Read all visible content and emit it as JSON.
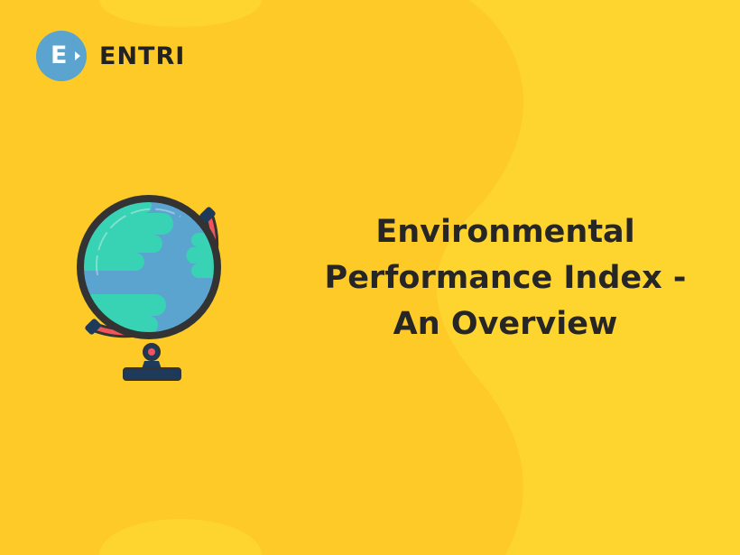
{
  "brand": {
    "logo_letter": "E",
    "name": "ENTRI",
    "logo_color": "#5BA4CF"
  },
  "headline": {
    "line1": "Environmental",
    "line2": "Performance Index -",
    "line3": "An Overview"
  },
  "colors": {
    "background": "#FDCA28",
    "text": "#262626",
    "globe_water": "#5BA4CF",
    "globe_land": "#38D2B4",
    "stand_ring": "#F0555B"
  },
  "illustration": {
    "icon": "globe-icon"
  }
}
